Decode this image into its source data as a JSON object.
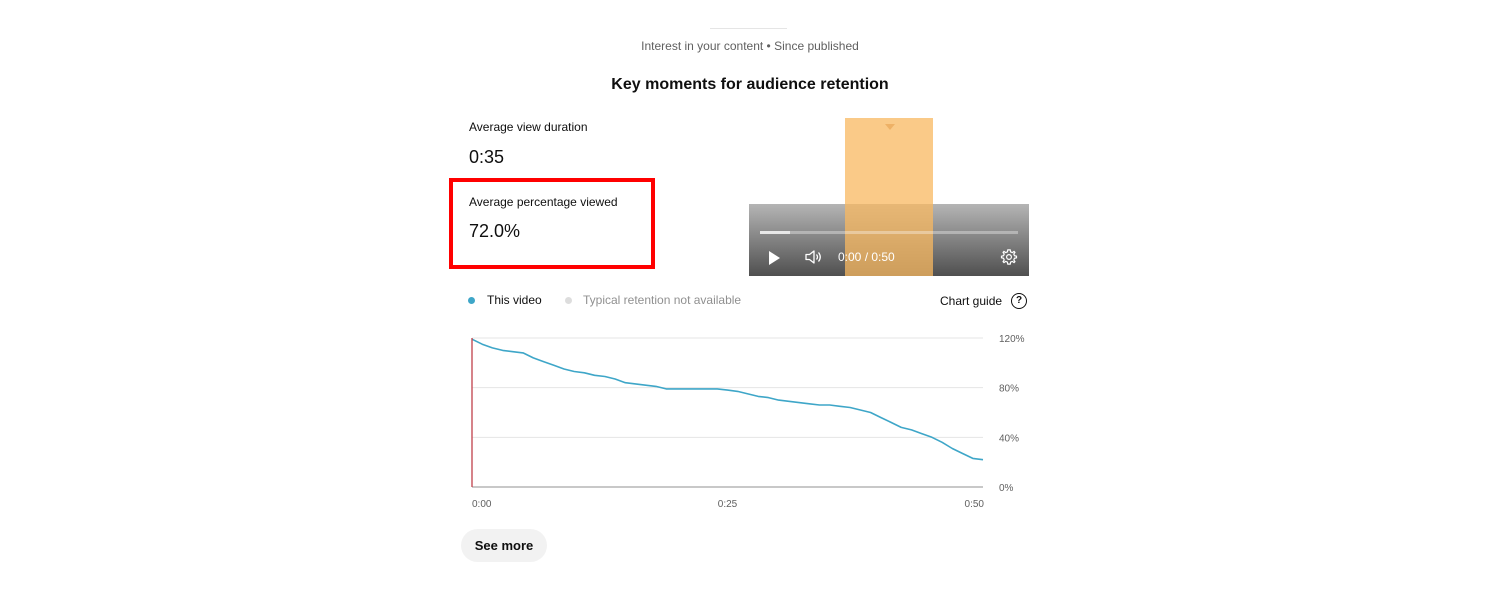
{
  "header": {
    "subtitle": "Interest in your content • Since published",
    "title": "Key moments for audience retention"
  },
  "metrics": {
    "avg_view_duration_label": "Average view duration",
    "avg_view_duration_value": "0:35",
    "avg_percentage_label": "Average percentage viewed",
    "avg_percentage_value": "72.0%"
  },
  "player": {
    "time": "0:00 / 0:50",
    "play_icon": "play-icon",
    "volume_icon": "volume-icon",
    "settings_icon": "gear-icon",
    "highlight_color": "#f8b860"
  },
  "legend": {
    "this_video": "This video",
    "typical": "Typical retention not available",
    "this_video_color": "#3ea6c8",
    "typical_color": "#dddddd"
  },
  "chart_guide": {
    "label": "Chart guide",
    "icon": "help-icon",
    "icon_glyph": "?"
  },
  "chart_data": {
    "type": "line",
    "x_tick_labels": [
      "0:00",
      "0:25",
      "0:50"
    ],
    "y_tick_labels": [
      "120%",
      "80%",
      "40%",
      "0%"
    ],
    "ylim": [
      0,
      120
    ],
    "xlim": [
      0,
      50
    ],
    "grid": true,
    "series": [
      {
        "color": "#3ea6c8",
        "x": [
          0,
          0.5,
          1,
          2,
          3,
          4,
          5,
          6,
          7,
          8,
          9,
          10,
          11,
          12,
          13,
          14,
          15,
          16,
          17,
          18,
          19,
          20,
          21,
          22,
          23,
          24,
          25,
          26,
          27,
          28,
          29,
          30,
          31,
          32,
          33,
          34,
          35,
          36,
          37,
          38,
          39,
          40,
          41,
          42,
          43,
          44,
          45,
          46,
          47,
          48,
          49,
          50
        ],
        "values": [
          119,
          117,
          115,
          112,
          110,
          109,
          108,
          104,
          101,
          98,
          95,
          93,
          92,
          90,
          89,
          87,
          84,
          83,
          82,
          81,
          79,
          79,
          79,
          79,
          79,
          79,
          78,
          77,
          75,
          73,
          72,
          70,
          69,
          68,
          67,
          66,
          66,
          65,
          64,
          62,
          60,
          56,
          52,
          48,
          46,
          43,
          40,
          36,
          31,
          27,
          23,
          22
        ]
      }
    ],
    "playhead_color": "#c0404a"
  },
  "footer": {
    "see_more": "See more"
  }
}
